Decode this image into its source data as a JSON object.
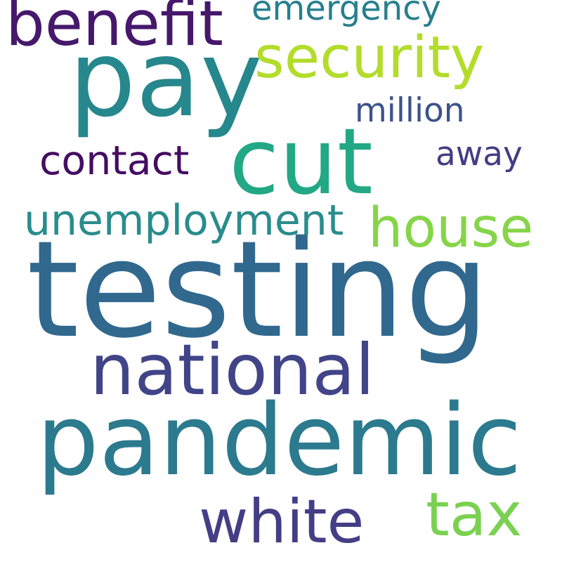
{
  "words": [
    {
      "key": "testing",
      "text": "testing",
      "color": "#31688e"
    },
    {
      "key": "pandemic",
      "text": "pandemic",
      "color": "#2c7a8e"
    },
    {
      "key": "pay",
      "text": "pay",
      "color": "#26878d"
    },
    {
      "key": "cut",
      "text": "cut",
      "color": "#22a884"
    },
    {
      "key": "national",
      "text": "national",
      "color": "#414487"
    },
    {
      "key": "benefit",
      "text": "benefit",
      "color": "#46186b"
    },
    {
      "key": "security",
      "text": "security",
      "color": "#b3dc2b"
    },
    {
      "key": "house",
      "text": "house",
      "color": "#86d549"
    },
    {
      "key": "white",
      "text": "white",
      "color": "#433e85"
    },
    {
      "key": "tax",
      "text": "tax",
      "color": "#7ad151"
    },
    {
      "key": "unemployment",
      "text": "unemployment",
      "color": "#2a8c8c"
    },
    {
      "key": "contact",
      "text": "contact",
      "color": "#450d62"
    },
    {
      "key": "emergency",
      "text": "emergency",
      "color": "#277f8e"
    },
    {
      "key": "million",
      "text": "million",
      "color": "#3b528b"
    },
    {
      "key": "away",
      "text": "away",
      "color": "#433d84"
    }
  ]
}
